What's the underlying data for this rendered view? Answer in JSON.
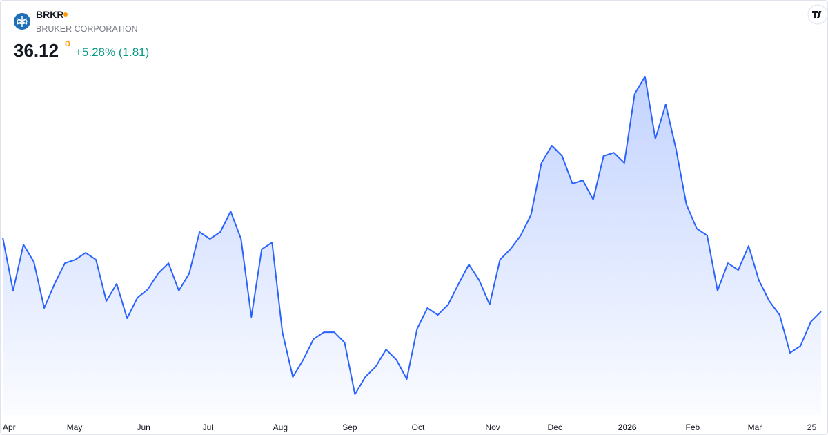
{
  "header": {
    "symbol": "BRKR",
    "name": "BRUKER CORPORATION",
    "price": "36.12",
    "interval": "D",
    "change": "+5.28% (1.81)"
  },
  "chart_data": {
    "type": "area",
    "color": "#2962ff",
    "values": [
      41.81,
      37.72,
      41.28,
      39.95,
      36.39,
      38.25,
      39.84,
      40.11,
      40.64,
      40.11,
      36.92,
      38.25,
      35.59,
      37.18,
      37.82,
      39.05,
      39.84,
      37.72,
      39.05,
      42.24,
      41.71,
      42.24,
      43.83,
      41.71,
      35.69,
      40.91,
      41.44,
      34.52,
      31.07,
      32.4,
      33.99,
      34.52,
      34.52,
      33.73,
      29.74,
      31.07,
      31.86,
      33.19,
      32.4,
      30.91,
      34.79,
      36.39,
      35.85,
      36.65,
      38.25,
      39.74,
      38.51,
      36.65,
      40.11,
      40.91,
      41.97,
      43.57,
      47.56,
      48.89,
      48.09,
      45.96,
      46.23,
      44.74,
      48.09,
      48.35,
      47.56,
      52.88,
      54.21,
      49.42,
      52.08,
      48.62,
      44.36,
      42.5,
      41.97,
      37.72,
      39.84,
      39.31,
      41.17,
      38.51,
      36.92,
      35.85,
      32.93,
      33.46,
      35.32,
      36.12
    ],
    "xlim": [
      0,
      79
    ],
    "xticks": [
      {
        "value": 0,
        "label": "Apr"
      },
      {
        "value": 6.93,
        "label": "May"
      },
      {
        "value": 13.6,
        "label": "Jun"
      },
      {
        "value": 19.8,
        "label": "Jul"
      },
      {
        "value": 26.8,
        "label": "Aug"
      },
      {
        "value": 33.5,
        "label": "Sep"
      },
      {
        "value": 40.1,
        "label": "Oct"
      },
      {
        "value": 47.3,
        "label": "Nov"
      },
      {
        "value": 53.3,
        "label": "Dec"
      },
      {
        "value": 60.3,
        "label": "2026"
      },
      {
        "value": 66.6,
        "label": "Feb"
      },
      {
        "value": 72.6,
        "label": "Mar"
      },
      {
        "value": 78.1,
        "label": "25"
      }
    ]
  }
}
